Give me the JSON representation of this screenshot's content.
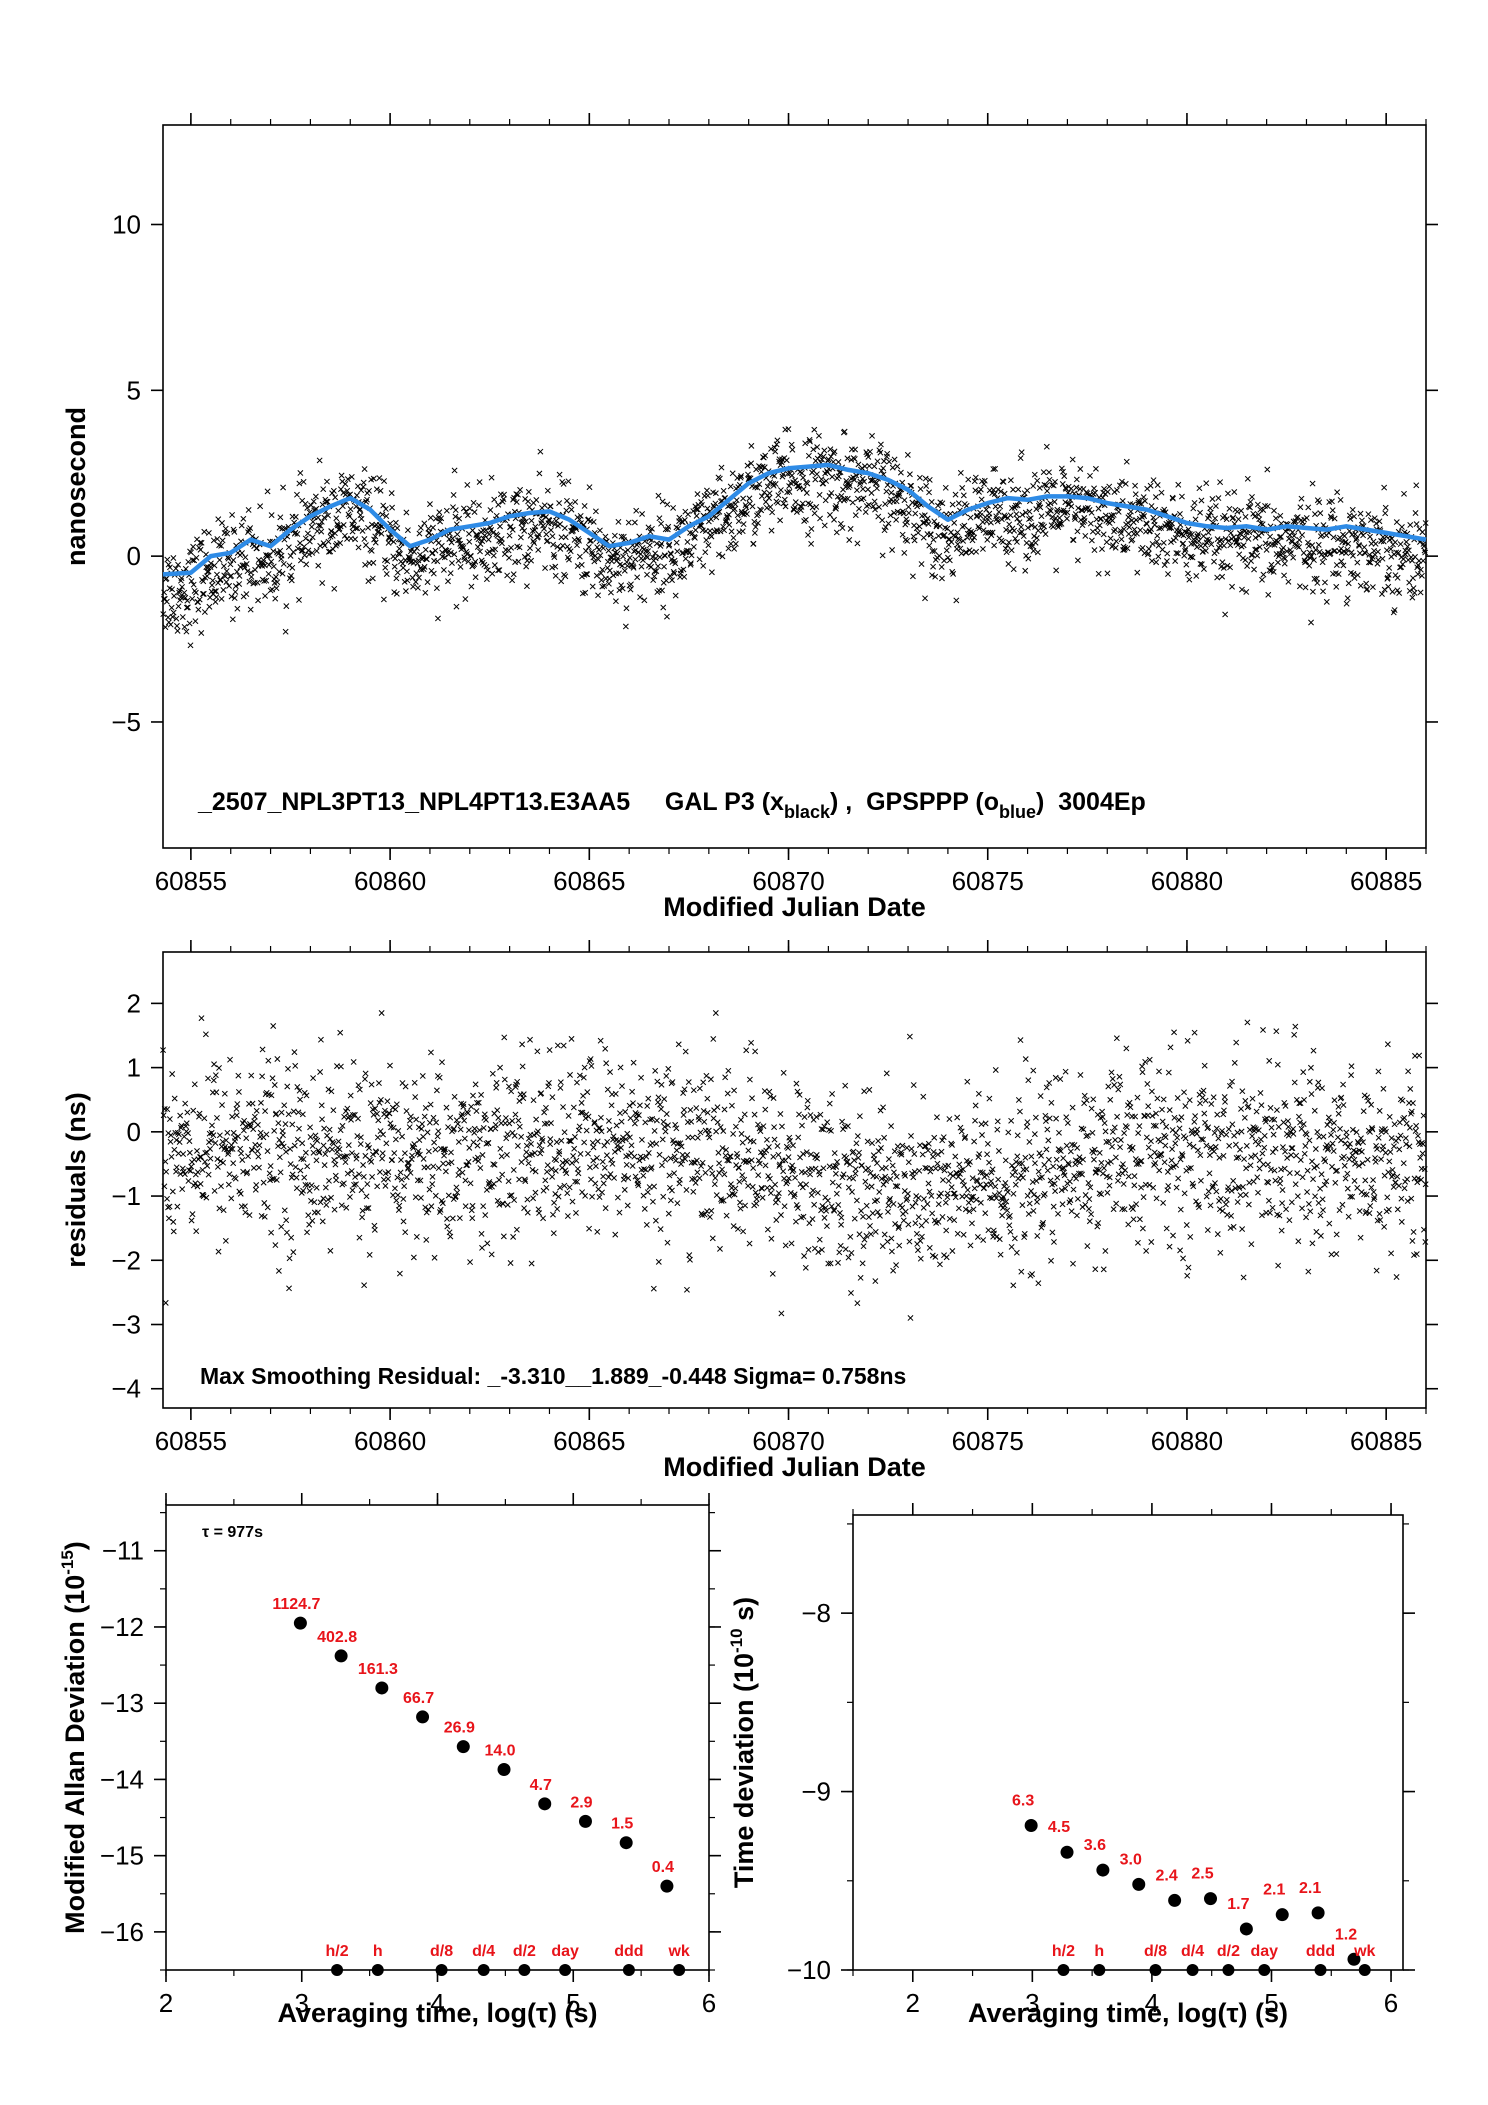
{
  "colors": {
    "scatter": "#000000",
    "smooth": "#2e8be6",
    "labels": "#e8141a",
    "axis": "#000000"
  },
  "chart_data": [
    {
      "id": "timeseries",
      "type": "scatter",
      "xlabel": "Modified Julian Date",
      "ylabel": "nanosecond",
      "xlim": [
        60854.3,
        60886.0
      ],
      "ylim": [
        -8.8,
        13.0
      ],
      "xticks": [
        60855,
        60860,
        60865,
        60870,
        60875,
        60880,
        60885
      ],
      "yticks": [
        -5,
        0,
        5,
        10
      ],
      "ytick_labels": [
        "−5",
        "0",
        "5",
        "10"
      ],
      "annotation_parts": [
        "_2507_NPL3PT13_NPL4PT13.E3AA5     GAL P3 (x",
        "black",
        ") ,  GPSPPP (o",
        "blue",
        ")  3004Ep"
      ],
      "smooth_series": {
        "x": [
          60854.3,
          60855.0,
          60855.5,
          60856.0,
          60856.5,
          60857.0,
          60857.5,
          60858.0,
          60858.5,
          60859.0,
          60859.5,
          60860.0,
          60860.5,
          60861.0,
          60861.5,
          60862.0,
          60862.5,
          60863.0,
          60863.5,
          60864.0,
          60864.5,
          60865.0,
          60865.5,
          60866.0,
          60866.5,
          60867.0,
          60867.5,
          60868.0,
          60868.5,
          60869.0,
          60869.5,
          60870.0,
          60870.5,
          60871.0,
          60871.5,
          60872.0,
          60872.5,
          60873.0,
          60873.5,
          60874.0,
          60874.5,
          60875.0,
          60875.5,
          60876.0,
          60876.5,
          60877.0,
          60877.5,
          60878.0,
          60878.5,
          60879.0,
          60879.5,
          60880.0,
          60880.5,
          60881.0,
          60881.5,
          60882.0,
          60882.5,
          60883.0,
          60883.5,
          60884.0,
          60884.5,
          60885.0,
          60885.5,
          60886.0
        ],
        "y": [
          -0.55,
          -0.5,
          0.0,
          0.1,
          0.5,
          0.3,
          0.8,
          1.2,
          1.5,
          1.75,
          1.4,
          0.8,
          0.3,
          0.5,
          0.8,
          0.9,
          1.0,
          1.2,
          1.3,
          1.35,
          1.1,
          0.7,
          0.3,
          0.4,
          0.6,
          0.5,
          0.9,
          1.2,
          1.7,
          2.2,
          2.5,
          2.65,
          2.7,
          2.75,
          2.6,
          2.5,
          2.3,
          2.0,
          1.5,
          1.1,
          1.4,
          1.6,
          1.75,
          1.7,
          1.8,
          1.8,
          1.75,
          1.6,
          1.5,
          1.4,
          1.2,
          1.0,
          0.9,
          0.85,
          0.9,
          0.8,
          0.9,
          0.85,
          0.8,
          0.9,
          0.8,
          0.7,
          0.6,
          0.5
        ]
      }
    },
    {
      "id": "residuals",
      "type": "scatter",
      "xlabel": "Modified Julian Date",
      "ylabel": "residuals (ns)",
      "xlim": [
        60854.3,
        60886.0
      ],
      "ylim": [
        -4.3,
        2.8
      ],
      "xticks": [
        60855,
        60860,
        60865,
        60870,
        60875,
        60880,
        60885
      ],
      "yticks": [
        -4,
        -3,
        -2,
        -1,
        0,
        1,
        2
      ],
      "ytick_labels": [
        "−4",
        "−3",
        "−2",
        "−1",
        "0",
        "1",
        "2"
      ],
      "annotation": "Max Smoothing Residual: _-3.310__1.889_-0.448  Sigma= 0.758ns"
    },
    {
      "id": "mdev",
      "type": "scatter",
      "xlabel": "Averaging time, log(τ) (s)",
      "ylabel_parts": [
        "Modified Allan Deviation (10",
        "-15",
        ")"
      ],
      "tau_label": "τ = 977s",
      "xlim": [
        2,
        6
      ],
      "ylim": [
        -16.5,
        -10.4
      ],
      "xticks": [
        2,
        3,
        4,
        5,
        6
      ],
      "yticks": [
        -16,
        -15,
        -14,
        -13,
        -12,
        -11
      ],
      "ytick_labels": [
        "−16",
        "−15",
        "−14",
        "−13",
        "−12",
        "−11"
      ],
      "points": [
        {
          "x": 2.99,
          "y": -11.95,
          "label": "1124.7"
        },
        {
          "x": 3.29,
          "y": -12.38,
          "label": "402.8"
        },
        {
          "x": 3.59,
          "y": -12.8,
          "label": "161.3"
        },
        {
          "x": 3.89,
          "y": -13.18,
          "label": "66.7"
        },
        {
          "x": 4.19,
          "y": -13.57,
          "label": "26.9"
        },
        {
          "x": 4.49,
          "y": -13.87,
          "label": "14.0"
        },
        {
          "x": 4.79,
          "y": -14.32,
          "label": "4.7"
        },
        {
          "x": 5.09,
          "y": -14.55,
          "label": "2.9"
        },
        {
          "x": 5.39,
          "y": -14.83,
          "label": "1.5"
        },
        {
          "x": 5.69,
          "y": -15.4,
          "label": "0.4"
        }
      ],
      "markers": [
        {
          "x": 3.26,
          "label": "h/2"
        },
        {
          "x": 3.56,
          "label": "h"
        },
        {
          "x": 4.03,
          "label": "d/8"
        },
        {
          "x": 4.34,
          "label": "d/4"
        },
        {
          "x": 4.64,
          "label": "d/2"
        },
        {
          "x": 4.94,
          "label": "day"
        },
        {
          "x": 5.41,
          "label": "ddd"
        },
        {
          "x": 5.78,
          "label": "wk"
        }
      ]
    },
    {
      "id": "tdev",
      "type": "scatter",
      "xlabel": "Averaging time, log(τ) (s)",
      "ylabel_parts": [
        "Time deviation (10",
        "-10",
        " s)"
      ],
      "xlim": [
        1.5,
        6.1
      ],
      "ylim": [
        -10.0,
        -7.45
      ],
      "xticks": [
        2,
        3,
        4,
        5,
        6
      ],
      "yticks": [
        -10,
        -9,
        -8
      ],
      "ytick_labels": [
        "−10",
        "−9",
        "−8"
      ],
      "points": [
        {
          "x": 2.99,
          "y": -9.19,
          "label": "6.3"
        },
        {
          "x": 3.29,
          "y": -9.34,
          "label": "4.5"
        },
        {
          "x": 3.59,
          "y": -9.44,
          "label": "3.6"
        },
        {
          "x": 3.89,
          "y": -9.52,
          "label": "3.0"
        },
        {
          "x": 4.19,
          "y": -9.61,
          "label": "2.4"
        },
        {
          "x": 4.49,
          "y": -9.6,
          "label": "2.5"
        },
        {
          "x": 4.79,
          "y": -9.77,
          "label": "1.7"
        },
        {
          "x": 5.09,
          "y": -9.69,
          "label": "2.1"
        },
        {
          "x": 5.39,
          "y": -9.68,
          "label": "2.1"
        },
        {
          "x": 5.69,
          "y": -9.94,
          "label": "1.2"
        }
      ],
      "markers": [
        {
          "x": 3.26,
          "label": "h/2"
        },
        {
          "x": 3.56,
          "label": "h"
        },
        {
          "x": 4.03,
          "label": "d/8"
        },
        {
          "x": 4.34,
          "label": "d/4"
        },
        {
          "x": 4.64,
          "label": "d/2"
        },
        {
          "x": 4.94,
          "label": "day"
        },
        {
          "x": 5.41,
          "label": "ddd"
        },
        {
          "x": 5.78,
          "label": "wk"
        }
      ]
    }
  ]
}
